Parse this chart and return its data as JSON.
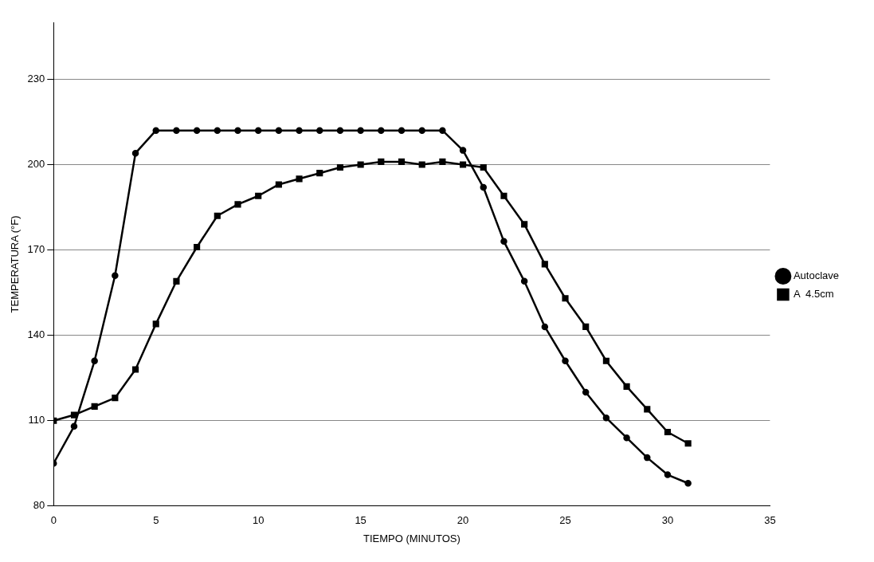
{
  "chart_data": {
    "type": "line",
    "xlabel": "TIEMPO (MINUTOS)",
    "ylabel": "TEMPERATURA (°F)",
    "x": [
      0,
      1,
      2,
      3,
      4,
      5,
      6,
      7,
      8,
      9,
      10,
      11,
      12,
      13,
      14,
      15,
      16,
      17,
      18,
      19,
      20,
      21,
      22,
      23,
      24,
      25,
      26,
      27,
      28,
      29,
      30,
      31
    ],
    "series": [
      {
        "name": "Autoclave",
        "color": "#000000",
        "marker": "circle",
        "values": [
          95,
          108,
          131,
          161,
          204,
          212,
          212,
          212,
          212,
          212,
          212,
          212,
          212,
          212,
          212,
          212,
          212,
          212,
          212,
          212,
          205,
          192,
          173,
          159,
          143,
          131,
          120,
          111,
          104,
          97,
          91,
          88
        ]
      },
      {
        "name": "A  4.5cm",
        "color": "#000000",
        "marker": "square",
        "values": [
          110,
          112,
          115,
          118,
          128,
          144,
          159,
          171,
          182,
          186,
          189,
          193,
          195,
          197,
          199,
          200,
          201,
          201,
          200,
          201,
          200,
          199,
          189,
          179,
          165,
          153,
          143,
          131,
          122,
          114,
          106,
          102
        ]
      }
    ],
    "xlim": [
      0,
      35
    ],
    "xticks": [
      0,
      5,
      10,
      15,
      20,
      25,
      30,
      35
    ],
    "ylim": [
      80,
      250
    ],
    "yticks": [
      80,
      110,
      140,
      170,
      200,
      230
    ],
    "grid": "y",
    "legend": "right",
    "line_style": "solid"
  }
}
